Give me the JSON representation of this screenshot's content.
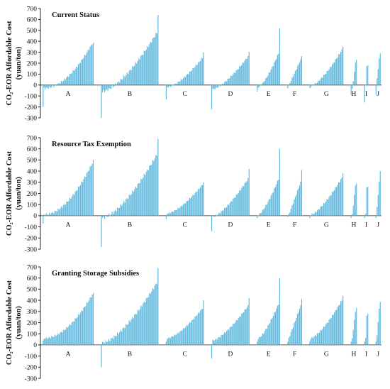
{
  "figure": {
    "ylabel_line1": "CO₂-EOR Affordable Cost",
    "ylabel_line2": "(yuan/ton)"
  },
  "chart_data": [
    {
      "type": "bar",
      "title": "Current Status",
      "ylim": [
        -300,
        700
      ],
      "yticks": [
        -300,
        -200,
        -100,
        0,
        100,
        200,
        300,
        400,
        500,
        600,
        700
      ],
      "grid": false,
      "bar_color": "#5fb8de",
      "groups": [
        {
          "label": "A",
          "count": 48,
          "min": -200,
          "start": -30,
          "end": 380,
          "max": 385,
          "curve": 1.9
        },
        {
          "label": "B",
          "count": 54,
          "min": -300,
          "start": -60,
          "end": 480,
          "max": 640,
          "curve": 1.5
        },
        {
          "label": "C",
          "count": 36,
          "min": -130,
          "start": -20,
          "end": 250,
          "max": 300,
          "curve": 1.5
        },
        {
          "label": "D",
          "count": 36,
          "min": -220,
          "start": -40,
          "end": 260,
          "max": 305,
          "curve": 1.4
        },
        {
          "label": "E",
          "count": 22,
          "min": -60,
          "start": -20,
          "end": 290,
          "max": 520,
          "curve": 1.4
        },
        {
          "label": "F",
          "count": 14,
          "min": -30,
          "start": 0,
          "end": 230,
          "max": 265,
          "curve": 1.0
        },
        {
          "label": "G",
          "count": 32,
          "min": -30,
          "start": -10,
          "end": 320,
          "max": 350,
          "curve": 1.4
        },
        {
          "label": "H",
          "count": 6,
          "min": -90,
          "start": -40,
          "end": 200,
          "max": 230,
          "curve": 1.0
        },
        {
          "label": "I",
          "count": 4,
          "min": -160,
          "start": 0,
          "end": 170,
          "max": 180,
          "curve": 1.0
        },
        {
          "label": "J",
          "count": 5,
          "min": -90,
          "start": 60,
          "end": 240,
          "max": 290,
          "curve": 1.0
        }
      ]
    },
    {
      "type": "bar",
      "title": "Resource Tax Exemption",
      "ylim": [
        -300,
        700
      ],
      "yticks": [
        -300,
        -200,
        -100,
        0,
        100,
        200,
        300,
        400,
        500,
        600,
        700
      ],
      "grid": false,
      "bar_color": "#5fb8de",
      "groups": [
        {
          "label": "A",
          "count": 48,
          "min": -70,
          "start": 10,
          "end": 470,
          "max": 500,
          "curve": 1.9
        },
        {
          "label": "B",
          "count": 54,
          "min": -280,
          "start": -20,
          "end": 550,
          "max": 690,
          "curve": 1.5
        },
        {
          "label": "C",
          "count": 36,
          "min": -30,
          "start": 20,
          "end": 280,
          "max": 300,
          "curve": 1.5
        },
        {
          "label": "D",
          "count": 36,
          "min": -140,
          "start": -10,
          "end": 330,
          "max": 420,
          "curve": 1.4
        },
        {
          "label": "E",
          "count": 22,
          "min": -20,
          "start": 10,
          "end": 330,
          "max": 600,
          "curve": 1.4
        },
        {
          "label": "F",
          "count": 14,
          "min": -10,
          "start": 10,
          "end": 300,
          "max": 410,
          "curve": 1.0
        },
        {
          "label": "G",
          "count": 32,
          "min": -20,
          "start": 10,
          "end": 340,
          "max": 380,
          "curve": 1.4
        },
        {
          "label": "H",
          "count": 6,
          "min": -20,
          "start": 10,
          "end": 270,
          "max": 290,
          "curve": 1.0
        },
        {
          "label": "I",
          "count": 4,
          "min": -20,
          "start": 20,
          "end": 250,
          "max": 260,
          "curve": 1.0
        },
        {
          "label": "J",
          "count": 5,
          "min": -20,
          "start": 80,
          "end": 300,
          "max": 400,
          "curve": 1.0
        }
      ]
    },
    {
      "type": "bar",
      "title": "Granting Storage Subsidies",
      "ylim": [
        -300,
        700
      ],
      "yticks": [
        -300,
        -200,
        -100,
        0,
        100,
        200,
        300,
        400,
        500,
        600,
        700
      ],
      "grid": false,
      "bar_color": "#5fb8de",
      "groups": [
        {
          "label": "A",
          "count": 48,
          "min": 40,
          "start": 60,
          "end": 450,
          "max": 465,
          "curve": 1.9
        },
        {
          "label": "B",
          "count": 54,
          "min": -200,
          "start": 20,
          "end": 560,
          "max": 690,
          "curve": 1.5
        },
        {
          "label": "C",
          "count": 36,
          "min": 30,
          "start": 60,
          "end": 330,
          "max": 400,
          "curve": 1.5
        },
        {
          "label": "D",
          "count": 36,
          "min": -120,
          "start": 40,
          "end": 350,
          "max": 420,
          "curve": 1.4
        },
        {
          "label": "E",
          "count": 22,
          "min": 30,
          "start": 60,
          "end": 370,
          "max": 600,
          "curve": 1.4
        },
        {
          "label": "F",
          "count": 14,
          "min": 30,
          "start": 60,
          "end": 350,
          "max": 410,
          "curve": 1.0
        },
        {
          "label": "G",
          "count": 32,
          "min": 30,
          "start": 60,
          "end": 400,
          "max": 440,
          "curve": 1.4
        },
        {
          "label": "H",
          "count": 6,
          "min": 30,
          "start": 60,
          "end": 300,
          "max": 330,
          "curve": 1.0
        },
        {
          "label": "I",
          "count": 4,
          "min": 30,
          "start": 60,
          "end": 260,
          "max": 280,
          "curve": 1.0
        },
        {
          "label": "J",
          "count": 5,
          "min": 30,
          "start": 90,
          "end": 320,
          "max": 385,
          "curve": 1.0
        }
      ]
    }
  ]
}
